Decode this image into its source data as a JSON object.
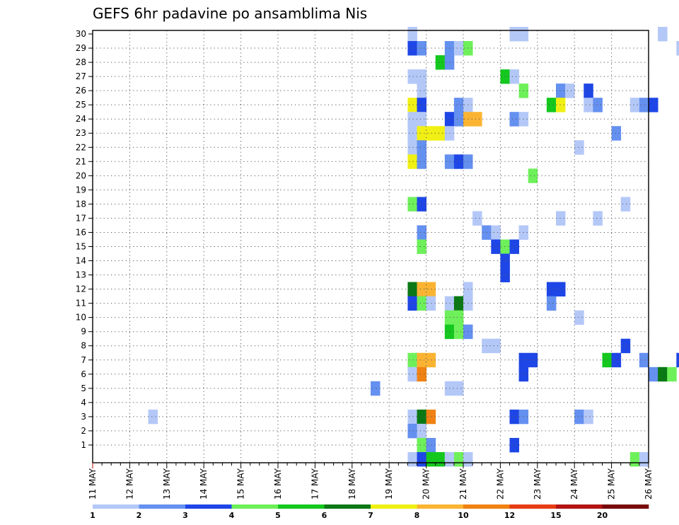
{
  "chart_data": {
    "type": "heatmap",
    "title": "GEFS 6hr padavine po ansamblima Nis",
    "xlabel": "",
    "ylabel": "",
    "x_tick_labels": [
      "11 MAY",
      "12 MAY",
      "13 MAY",
      "14 MAY",
      "15 MAY",
      "16 MAY",
      "17 MAY",
      "18 MAY",
      "19 MAY",
      "20 MAY",
      "21 MAY",
      "22 MAY",
      "23 MAY",
      "24 MAY",
      "25 MAY",
      "26 MAY"
    ],
    "y_tick_labels": [
      "1",
      "2",
      "3",
      "4",
      "5",
      "6",
      "7",
      "8",
      "9",
      "10",
      "11",
      "12",
      "13",
      "14",
      "15",
      "16",
      "17",
      "18",
      "19",
      "20",
      "21",
      "22",
      "23",
      "24",
      "25",
      "26",
      "27",
      "28",
      "29",
      "30"
    ],
    "ylim": [
      0,
      30
    ],
    "time_steps_per_day": 4,
    "grid": "dotted",
    "legend": {
      "placement": "bottom",
      "labels": [
        "1",
        "2",
        "3",
        "4",
        "5",
        "6",
        "7",
        "8",
        "10",
        "12",
        "15",
        "20"
      ],
      "colors": [
        "#b4c8f8",
        "#6490f0",
        "#1e46e6",
        "#6ef05a",
        "#14c81e",
        "#0a7814",
        "#f0f014",
        "#fab432",
        "#f08214",
        "#e63c14",
        "#b41414",
        "#780a0a"
      ]
    },
    "cells_note": "each cell = [member, time_step_index, color_class]",
    "cells": [
      [
        30,
        34,
        0
      ],
      [
        30,
        45,
        0
      ],
      [
        30,
        46,
        0
      ],
      [
        30,
        61,
        0
      ],
      [
        30,
        70,
        5
      ],
      [
        30,
        71,
        2
      ],
      [
        29,
        34,
        2
      ],
      [
        29,
        35,
        1
      ],
      [
        29,
        38,
        1
      ],
      [
        29,
        39,
        0
      ],
      [
        29,
        40,
        3
      ],
      [
        29,
        63,
        0
      ],
      [
        29,
        64,
        1
      ],
      [
        29,
        65,
        0
      ],
      [
        29,
        67,
        0
      ],
      [
        29,
        71,
        2
      ],
      [
        29,
        75,
        1
      ],
      [
        29,
        76,
        0
      ],
      [
        29,
        77,
        3
      ],
      [
        29,
        78,
        1
      ],
      [
        29,
        80,
        0
      ],
      [
        29,
        84,
        1
      ],
      [
        29,
        85,
        0
      ],
      [
        29,
        87,
        0
      ],
      [
        29,
        88,
        0
      ],
      [
        29,
        90,
        0
      ],
      [
        28,
        37,
        4
      ],
      [
        28,
        38,
        1
      ],
      [
        28,
        74,
        2
      ],
      [
        28,
        75,
        7
      ],
      [
        28,
        76,
        1
      ],
      [
        28,
        77,
        2
      ],
      [
        28,
        78,
        0
      ],
      [
        28,
        79,
        0
      ],
      [
        28,
        80,
        0
      ],
      [
        27,
        34,
        0
      ],
      [
        27,
        35,
        0
      ],
      [
        27,
        44,
        4
      ],
      [
        27,
        45,
        0
      ],
      [
        27,
        73,
        1
      ],
      [
        27,
        75,
        8
      ],
      [
        26,
        35,
        0
      ],
      [
        26,
        46,
        3
      ],
      [
        26,
        50,
        1
      ],
      [
        26,
        51,
        0
      ],
      [
        26,
        53,
        2
      ],
      [
        26,
        67,
        3
      ],
      [
        26,
        68,
        6
      ],
      [
        26,
        69,
        6
      ],
      [
        26,
        70,
        2
      ],
      [
        26,
        71,
        2
      ],
      [
        26,
        72,
        1
      ],
      [
        26,
        73,
        2
      ],
      [
        26,
        74,
        0
      ],
      [
        25,
        34,
        6
      ],
      [
        25,
        35,
        2
      ],
      [
        25,
        39,
        1
      ],
      [
        25,
        40,
        0
      ],
      [
        25,
        49,
        4
      ],
      [
        25,
        50,
        6
      ],
      [
        25,
        53,
        0
      ],
      [
        25,
        54,
        1
      ],
      [
        25,
        58,
        0
      ],
      [
        25,
        59,
        1
      ],
      [
        25,
        60,
        2
      ],
      [
        25,
        78,
        0
      ],
      [
        25,
        82,
        0
      ],
      [
        25,
        83,
        1
      ],
      [
        24,
        34,
        0
      ],
      [
        24,
        35,
        0
      ],
      [
        24,
        38,
        2
      ],
      [
        24,
        39,
        1
      ],
      [
        24,
        40,
        7
      ],
      [
        24,
        41,
        7
      ],
      [
        24,
        45,
        1
      ],
      [
        24,
        46,
        0
      ],
      [
        24,
        70,
        1
      ],
      [
        23,
        34,
        0
      ],
      [
        23,
        35,
        6
      ],
      [
        23,
        36,
        6
      ],
      [
        23,
        37,
        6
      ],
      [
        23,
        38,
        0
      ],
      [
        23,
        56,
        1
      ],
      [
        23,
        82,
        0
      ],
      [
        23,
        83,
        3
      ],
      [
        23,
        84,
        1
      ],
      [
        22,
        34,
        0
      ],
      [
        22,
        35,
        1
      ],
      [
        22,
        52,
        0
      ],
      [
        22,
        78,
        0
      ],
      [
        22,
        79,
        5
      ],
      [
        22,
        80,
        1
      ],
      [
        22,
        81,
        0
      ],
      [
        22,
        82,
        5
      ],
      [
        22,
        83,
        0
      ],
      [
        21,
        34,
        6
      ],
      [
        21,
        35,
        1
      ],
      [
        21,
        38,
        1
      ],
      [
        21,
        39,
        2
      ],
      [
        21,
        40,
        1
      ],
      [
        21,
        64,
        4
      ],
      [
        21,
        65,
        2
      ],
      [
        21,
        67,
        0
      ],
      [
        21,
        68,
        1
      ],
      [
        21,
        69,
        2
      ],
      [
        21,
        73,
        3
      ],
      [
        21,
        74,
        8
      ],
      [
        21,
        78,
        0
      ],
      [
        21,
        79,
        2
      ],
      [
        21,
        80,
        1
      ],
      [
        21,
        81,
        1
      ],
      [
        20,
        47,
        3
      ],
      [
        20,
        73,
        0
      ],
      [
        20,
        74,
        3
      ],
      [
        20,
        76,
        4
      ],
      [
        20,
        77,
        0
      ],
      [
        20,
        78,
        2
      ],
      [
        19,
        81,
        0
      ],
      [
        19,
        82,
        0
      ],
      [
        19,
        84,
        2
      ],
      [
        19,
        85,
        8
      ],
      [
        18,
        34,
        3
      ],
      [
        18,
        35,
        2
      ],
      [
        18,
        57,
        0
      ],
      [
        18,
        75,
        1
      ],
      [
        18,
        85,
        1
      ],
      [
        17,
        41,
        0
      ],
      [
        17,
        50,
        0
      ],
      [
        17,
        54,
        0
      ],
      [
        17,
        73,
        0
      ],
      [
        17,
        74,
        0
      ],
      [
        16,
        35,
        1
      ],
      [
        16,
        42,
        1
      ],
      [
        16,
        43,
        0
      ],
      [
        16,
        46,
        0
      ],
      [
        16,
        66,
        0
      ],
      [
        16,
        77,
        0
      ],
      [
        16,
        78,
        0
      ],
      [
        16,
        79,
        0
      ],
      [
        16,
        80,
        0
      ],
      [
        15,
        35,
        3
      ],
      [
        15,
        43,
        2
      ],
      [
        15,
        44,
        3
      ],
      [
        15,
        45,
        2
      ],
      [
        15,
        66,
        2
      ],
      [
        15,
        67,
        2
      ],
      [
        15,
        68,
        0
      ],
      [
        15,
        73,
        3
      ],
      [
        15,
        74,
        7
      ],
      [
        15,
        80,
        3
      ],
      [
        14,
        44,
        2
      ],
      [
        14,
        77,
        0
      ],
      [
        14,
        78,
        0
      ],
      [
        14,
        79,
        2
      ],
      [
        14,
        80,
        4
      ],
      [
        14,
        81,
        0
      ],
      [
        14,
        82,
        1
      ],
      [
        13,
        44,
        2
      ],
      [
        13,
        79,
        1
      ],
      [
        12,
        34,
        5
      ],
      [
        12,
        35,
        7
      ],
      [
        12,
        36,
        7
      ],
      [
        12,
        40,
        0
      ],
      [
        12,
        49,
        2
      ],
      [
        12,
        50,
        2
      ],
      [
        12,
        70,
        0
      ],
      [
        12,
        72,
        0
      ],
      [
        12,
        73,
        3
      ],
      [
        12,
        74,
        2
      ],
      [
        12,
        75,
        1
      ],
      [
        12,
        76,
        2
      ],
      [
        12,
        77,
        2
      ],
      [
        12,
        78,
        2
      ],
      [
        12,
        79,
        2
      ],
      [
        12,
        82,
        0
      ],
      [
        11,
        34,
        2
      ],
      [
        11,
        35,
        3
      ],
      [
        11,
        36,
        0
      ],
      [
        11,
        38,
        0
      ],
      [
        11,
        39,
        5
      ],
      [
        11,
        40,
        0
      ],
      [
        11,
        49,
        1
      ],
      [
        11,
        70,
        1
      ],
      [
        11,
        75,
        0
      ],
      [
        10,
        38,
        3
      ],
      [
        10,
        39,
        3
      ],
      [
        10,
        52,
        0
      ],
      [
        10,
        73,
        5
      ],
      [
        10,
        74,
        3
      ],
      [
        10,
        79,
        2
      ],
      [
        10,
        80,
        7
      ],
      [
        10,
        81,
        4
      ],
      [
        9,
        38,
        4
      ],
      [
        9,
        39,
        3
      ],
      [
        9,
        40,
        1
      ],
      [
        9,
        64,
        0
      ],
      [
        9,
        65,
        1
      ],
      [
        9,
        67,
        0
      ],
      [
        9,
        75,
        2
      ],
      [
        9,
        80,
        0
      ],
      [
        9,
        81,
        0
      ],
      [
        8,
        42,
        0
      ],
      [
        8,
        43,
        0
      ],
      [
        8,
        57,
        2
      ],
      [
        8,
        71,
        1
      ],
      [
        8,
        74,
        2
      ],
      [
        8,
        75,
        2
      ],
      [
        8,
        79,
        4
      ],
      [
        8,
        80,
        7
      ],
      [
        7,
        34,
        3
      ],
      [
        7,
        35,
        7
      ],
      [
        7,
        36,
        7
      ],
      [
        7,
        46,
        2
      ],
      [
        7,
        47,
        2
      ],
      [
        7,
        55,
        4
      ],
      [
        7,
        56,
        2
      ],
      [
        7,
        59,
        1
      ],
      [
        7,
        63,
        2
      ],
      [
        7,
        73,
        0
      ],
      [
        7,
        74,
        2
      ],
      [
        7,
        75,
        2
      ],
      [
        7,
        76,
        0
      ],
      [
        7,
        79,
        0
      ],
      [
        7,
        82,
        0
      ],
      [
        7,
        83,
        0
      ],
      [
        6,
        34,
        0
      ],
      [
        6,
        35,
        8
      ],
      [
        6,
        46,
        2
      ],
      [
        6,
        60,
        1
      ],
      [
        6,
        61,
        5
      ],
      [
        6,
        62,
        3
      ],
      [
        6,
        65,
        0
      ],
      [
        6,
        66,
        7
      ],
      [
        6,
        67,
        0
      ],
      [
        6,
        68,
        5
      ],
      [
        6,
        69,
        1
      ],
      [
        6,
        70,
        0
      ],
      [
        6,
        74,
        1
      ],
      [
        6,
        75,
        0
      ],
      [
        6,
        77,
        0
      ],
      [
        6,
        81,
        0
      ],
      [
        5,
        30,
        1
      ],
      [
        5,
        38,
        0
      ],
      [
        5,
        39,
        0
      ],
      [
        5,
        70,
        0
      ],
      [
        5,
        74,
        2
      ],
      [
        5,
        75,
        2
      ],
      [
        5,
        77,
        0
      ],
      [
        5,
        83,
        1
      ],
      [
        3,
        6,
        0
      ],
      [
        3,
        34,
        0
      ],
      [
        3,
        35,
        5
      ],
      [
        3,
        36,
        8
      ],
      [
        3,
        45,
        2
      ],
      [
        3,
        46,
        1
      ],
      [
        3,
        52,
        1
      ],
      [
        3,
        53,
        0
      ],
      [
        3,
        73,
        9
      ],
      [
        3,
        74,
        2
      ],
      [
        3,
        75,
        2
      ],
      [
        3,
        78,
        0
      ],
      [
        3,
        79,
        3
      ],
      [
        3,
        80,
        1
      ],
      [
        2,
        34,
        1
      ],
      [
        2,
        35,
        0
      ],
      [
        2,
        85,
        1
      ],
      [
        1,
        35,
        3
      ],
      [
        1,
        36,
        1
      ],
      [
        1,
        45,
        2
      ],
      [
        1,
        70,
        0
      ],
      [
        1,
        71,
        0
      ],
      [
        0,
        34,
        0
      ],
      [
        0,
        35,
        2
      ],
      [
        0,
        36,
        4
      ],
      [
        0,
        37,
        4
      ],
      [
        0,
        38,
        0
      ],
      [
        0,
        39,
        3
      ],
      [
        0,
        40,
        0
      ],
      [
        0,
        58,
        3
      ],
      [
        0,
        59,
        0
      ],
      [
        0,
        69,
        6
      ],
      [
        0,
        70,
        2
      ],
      [
        0,
        74,
        2
      ],
      [
        0,
        75,
        0
      ],
      [
        0,
        78,
        0
      ],
      [
        0,
        79,
        1
      ],
      [
        0,
        80,
        0
      ],
      [
        0,
        82,
        2
      ],
      [
        0,
        83,
        2
      ]
    ]
  }
}
